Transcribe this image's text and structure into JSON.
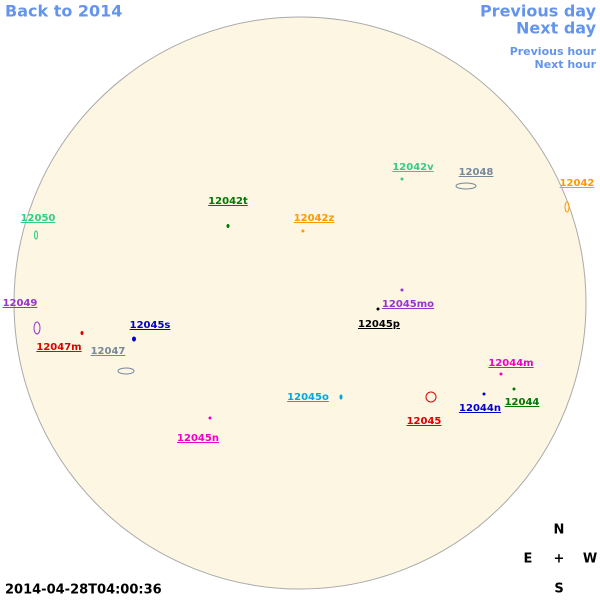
{
  "navigation": {
    "back": "Back to 2014",
    "previous_day": "Previous day",
    "next_day": "Next day",
    "previous_hour": "Previous hour",
    "next_hour": "Next hour"
  },
  "regions": [
    {
      "label": "12042v",
      "color": "#33cc88"
    },
    {
      "label": "12048",
      "color": "#778899"
    },
    {
      "label": "12042",
      "color": "#ff9900"
    },
    {
      "label": "12050",
      "color": "#33cc88"
    },
    {
      "label": "12042t",
      "color": "#007700"
    },
    {
      "label": "12042z",
      "color": "#ff9900"
    },
    {
      "label": "12049",
      "color": "#9933cc"
    },
    {
      "label": "12045mo",
      "color": "#9933cc"
    },
    {
      "label": "12045s",
      "color": "#0000cc"
    },
    {
      "label": "12045p",
      "color": "#000000"
    },
    {
      "label": "12047m",
      "color": "#dd0000"
    },
    {
      "label": "12047",
      "color": "#778899"
    },
    {
      "label": "12044m",
      "color": "#ee00cc"
    },
    {
      "label": "12045o",
      "color": "#00aadd"
    },
    {
      "label": "12044",
      "color": "#007700"
    },
    {
      "label": "12044n",
      "color": "#0000cc"
    },
    {
      "label": "12045",
      "color": "#dd0000"
    },
    {
      "label": "12045n",
      "color": "#ee00cc"
    }
  ],
  "compass": {
    "north": "N",
    "east": "E",
    "center": "+",
    "west": "W",
    "south": "S"
  },
  "timestamp": "2014-04-28T04:00:36"
}
